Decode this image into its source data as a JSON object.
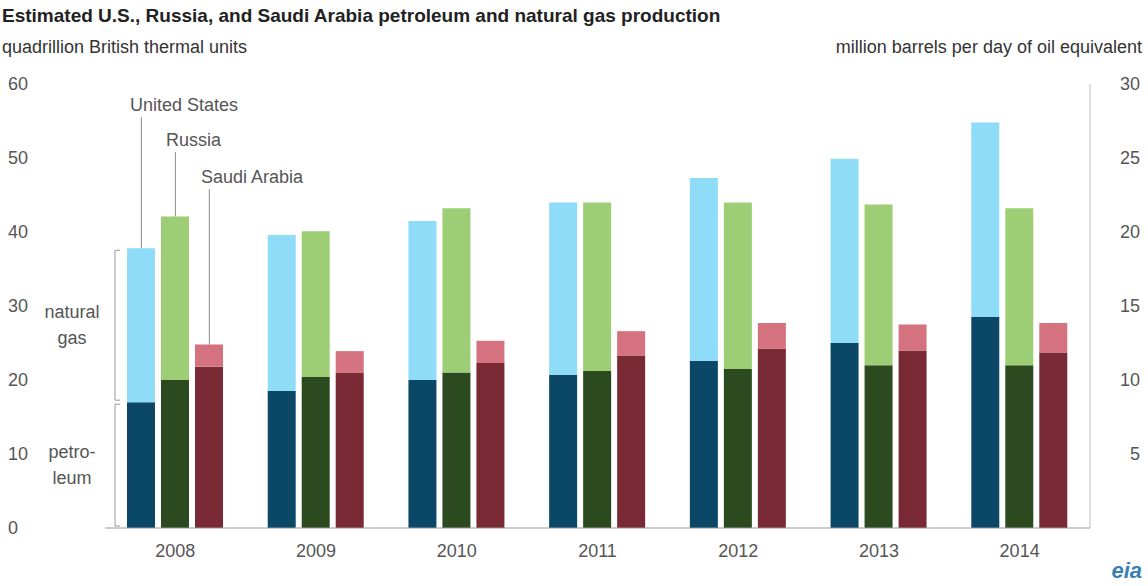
{
  "chart_data": {
    "type": "bar",
    "title": "Estimated U.S., Russia, and Saudi Arabia petroleum and natural gas production",
    "y_label": "quadrillion British thermal units",
    "y2_label": "million barrels per day of oil equivalent",
    "logo": "eia",
    "categories": [
      "2008",
      "2009",
      "2010",
      "2011",
      "2012",
      "2013",
      "2014"
    ],
    "stacked": true,
    "grid": false,
    "ylim": [
      0,
      60
    ],
    "yticks": [
      0,
      10,
      20,
      30,
      40,
      50,
      60
    ],
    "y2lim": [
      0,
      30
    ],
    "y2ticks": [
      5,
      10,
      15,
      20,
      25,
      30
    ],
    "groups": [
      {
        "name": "United States",
        "series": [
          {
            "name": "petroleum",
            "label_lines": [
              "petro-",
              "leum"
            ],
            "color": "#0b4868",
            "values": [
              17.0,
              18.5,
              20.0,
              20.7,
              22.6,
              25.0,
              28.5
            ]
          },
          {
            "name": "natural gas",
            "label_lines": [
              "natural",
              "gas"
            ],
            "color": "#8fdcf9",
            "values": [
              20.8,
              21.1,
              21.5,
              23.3,
              24.7,
              24.9,
              26.3
            ]
          }
        ]
      },
      {
        "name": "Russia",
        "series": [
          {
            "name": "petroleum",
            "color": "#2b4a1f",
            "values": [
              20.0,
              20.4,
              21.0,
              21.2,
              21.5,
              22.0,
              22.0
            ]
          },
          {
            "name": "natural gas",
            "color": "#9dcd75",
            "values": [
              22.1,
              19.7,
              22.2,
              22.8,
              22.5,
              21.7,
              21.2
            ]
          }
        ]
      },
      {
        "name": "Saudi Arabia",
        "series": [
          {
            "name": "petroleum",
            "color": "#792a35",
            "values": [
              21.8,
              21.0,
              22.3,
              23.3,
              24.2,
              24.0,
              23.7
            ]
          },
          {
            "name": "natural gas",
            "color": "#d5727f",
            "values": [
              3.0,
              2.9,
              3.0,
              3.3,
              3.5,
              3.5,
              4.0
            ]
          }
        ]
      }
    ]
  }
}
